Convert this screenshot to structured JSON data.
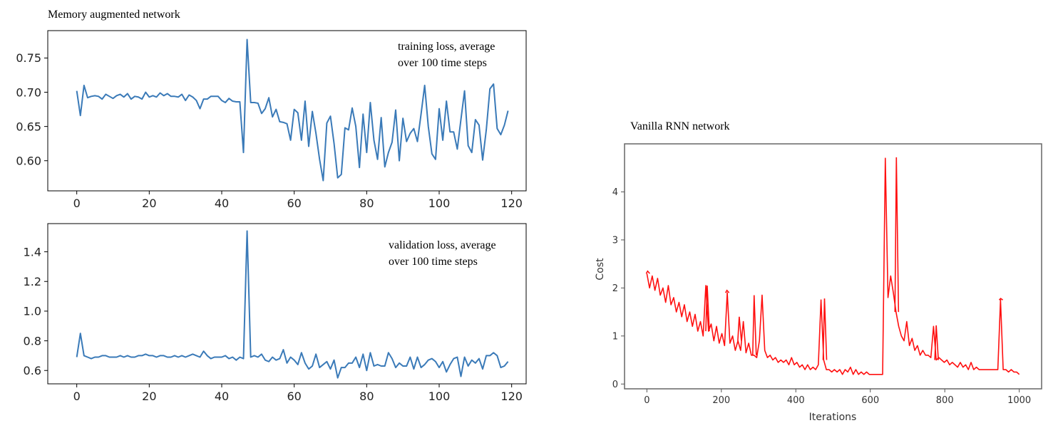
{
  "chart_data": [
    {
      "type": "line",
      "title": "Memory augmented network",
      "annotation": [
        "training loss, average",
        "over 100 time steps"
      ],
      "color": "#3a7ab8",
      "xlim": [
        -8,
        124
      ],
      "ylim": [
        0.556,
        0.79
      ],
      "xticks": [
        0,
        20,
        40,
        60,
        80,
        100,
        120
      ],
      "xtick_labels": [
        "0",
        "20",
        "40",
        "60",
        "80",
        "100",
        "120"
      ],
      "yticks": [
        0.6,
        0.65,
        0.7,
        0.75
      ],
      "ytick_labels": [
        "0.60",
        "0.65",
        "0.70",
        "0.75"
      ],
      "series": [
        {
          "values": [
            0.702,
            0.666,
            0.71,
            0.692,
            0.694,
            0.695,
            0.694,
            0.69,
            0.697,
            0.694,
            0.691,
            0.695,
            0.697,
            0.693,
            0.698,
            0.69,
            0.694,
            0.693,
            0.69,
            0.7,
            0.693,
            0.695,
            0.693,
            0.699,
            0.695,
            0.698,
            0.694,
            0.694,
            0.693,
            0.697,
            0.688,
            0.696,
            0.693,
            0.688,
            0.676,
            0.69,
            0.69,
            0.694,
            0.694,
            0.694,
            0.688,
            0.685,
            0.691,
            0.687,
            0.686,
            0.686,
            0.612,
            0.777,
            0.685,
            0.685,
            0.684,
            0.669,
            0.676,
            0.692,
            0.664,
            0.675,
            0.657,
            0.656,
            0.654,
            0.63,
            0.675,
            0.67,
            0.63,
            0.687,
            0.621,
            0.672,
            0.64,
            0.602,
            0.571,
            0.655,
            0.665,
            0.625,
            0.575,
            0.58,
            0.648,
            0.645,
            0.677,
            0.65,
            0.59,
            0.668,
            0.612,
            0.685,
            0.63,
            0.602,
            0.663,
            0.591,
            0.612,
            0.627,
            0.674,
            0.6,
            0.662,
            0.628,
            0.64,
            0.647,
            0.628,
            0.668,
            0.71,
            0.65,
            0.61,
            0.602,
            0.676,
            0.63,
            0.687,
            0.642,
            0.642,
            0.617,
            0.66,
            0.702,
            0.622,
            0.612,
            0.66,
            0.652,
            0.601,
            0.645,
            0.705,
            0.712,
            0.647,
            0.638,
            0.652,
            0.673
          ]
        }
      ]
    },
    {
      "type": "line",
      "title": "",
      "annotation": [
        "validation loss, average",
        "over 100 time steps"
      ],
      "color": "#3a7ab8",
      "xlim": [
        -8,
        124
      ],
      "ylim": [
        0.51,
        1.59
      ],
      "xticks": [
        0,
        20,
        40,
        60,
        80,
        100,
        120
      ],
      "xtick_labels": [
        "0",
        "20",
        "40",
        "60",
        "80",
        "100",
        "120"
      ],
      "yticks": [
        0.6,
        0.8,
        1.0,
        1.2,
        1.4
      ],
      "ytick_labels": [
        "0.6",
        "0.8",
        "1.0",
        "1.2",
        "1.4"
      ],
      "series": [
        {
          "values": [
            0.69,
            0.85,
            0.7,
            0.69,
            0.68,
            0.69,
            0.69,
            0.7,
            0.7,
            0.69,
            0.69,
            0.69,
            0.7,
            0.69,
            0.7,
            0.69,
            0.69,
            0.7,
            0.7,
            0.71,
            0.7,
            0.7,
            0.69,
            0.7,
            0.7,
            0.69,
            0.69,
            0.7,
            0.69,
            0.7,
            0.69,
            0.7,
            0.71,
            0.7,
            0.69,
            0.73,
            0.7,
            0.68,
            0.69,
            0.69,
            0.69,
            0.7,
            0.68,
            0.69,
            0.67,
            0.69,
            0.68,
            1.54,
            0.69,
            0.7,
            0.69,
            0.71,
            0.67,
            0.66,
            0.69,
            0.67,
            0.68,
            0.74,
            0.65,
            0.69,
            0.67,
            0.64,
            0.72,
            0.65,
            0.61,
            0.63,
            0.71,
            0.62,
            0.64,
            0.66,
            0.61,
            0.67,
            0.55,
            0.62,
            0.62,
            0.65,
            0.65,
            0.69,
            0.62,
            0.71,
            0.6,
            0.72,
            0.63,
            0.64,
            0.63,
            0.63,
            0.72,
            0.68,
            0.62,
            0.65,
            0.63,
            0.63,
            0.69,
            0.61,
            0.69,
            0.62,
            0.64,
            0.67,
            0.68,
            0.66,
            0.62,
            0.66,
            0.59,
            0.64,
            0.68,
            0.69,
            0.56,
            0.69,
            0.63,
            0.67,
            0.65,
            0.68,
            0.61,
            0.7,
            0.7,
            0.72,
            0.7,
            0.62,
            0.63,
            0.66
          ]
        }
      ]
    },
    {
      "type": "line",
      "title": "Vanilla RNN network",
      "color": "#ff1010",
      "xlabel": "Iterations",
      "ylabel": "Cost",
      "xlim": [
        -60,
        1060
      ],
      "ylim": [
        -0.1,
        5.0
      ],
      "xticks": [
        0,
        200,
        400,
        600,
        800,
        1000
      ],
      "xtick_labels": [
        "0",
        "200",
        "400",
        "600",
        "800",
        "1000"
      ],
      "yticks": [
        0,
        1,
        2,
        3,
        4
      ],
      "ytick_labels": [
        "0",
        "1",
        "2",
        "3",
        "4"
      ],
      "series": [
        {
          "values": [
            2.3,
            2.0,
            2.25,
            1.95,
            2.2,
            1.85,
            2.0,
            1.7,
            2.05,
            1.65,
            1.8,
            1.5,
            1.7,
            1.4,
            1.65,
            1.3,
            1.5,
            1.2,
            1.45,
            1.1,
            1.3,
            1.0,
            2.05,
            1.1,
            1.25,
            0.9,
            1.2,
            0.85,
            1.05,
            0.8,
            1.9,
            0.85,
            1.0,
            0.7,
            0.9,
            0.7,
            1.3,
            0.65,
            0.85,
            0.6,
            0.6,
            0.55,
            0.9,
            1.85,
            0.7,
            0.55,
            0.6,
            0.5,
            0.55,
            0.45,
            0.5,
            0.45,
            0.5,
            0.4,
            0.55,
            0.4,
            0.45,
            0.35,
            0.4,
            0.3,
            0.4,
            0.3,
            0.35,
            0.3,
            0.4,
            1.75,
            0.5,
            0.3,
            0.3,
            0.25,
            0.3,
            0.25,
            0.3,
            0.2,
            0.3,
            0.25,
            0.35,
            0.2,
            0.3,
            0.2,
            0.25,
            0.2,
            0.25,
            0.2,
            0.2,
            0.2,
            0.2,
            0.2,
            0.2,
            4.7,
            1.8,
            2.25,
            1.9,
            1.5,
            1.2,
            1.0,
            0.9,
            1.3,
            0.8,
            0.95,
            0.7,
            0.8,
            0.6,
            0.7,
            0.6,
            0.6,
            0.55,
            1.2,
            0.5,
            0.55,
            0.5,
            0.45,
            0.5,
            0.4,
            0.45,
            0.4,
            0.35,
            0.45,
            0.35,
            0.4,
            0.3,
            0.45,
            0.3,
            0.35,
            0.3,
            0.3,
            0.3,
            0.3,
            0.3,
            0.3,
            0.3,
            0.3,
            1.75,
            0.3,
            0.3,
            0.25,
            0.3,
            0.25,
            0.25,
            0.2
          ]
        }
      ],
      "spikes": [
        [
          2,
          2.35
        ],
        [
          162,
          2.05
        ],
        [
          215,
          1.95
        ],
        [
          248,
          1.4
        ],
        [
          288,
          1.85
        ],
        [
          477,
          1.78
        ],
        [
          670,
          4.72
        ],
        [
          777,
          1.22
        ],
        [
          950,
          1.78
        ]
      ]
    }
  ]
}
